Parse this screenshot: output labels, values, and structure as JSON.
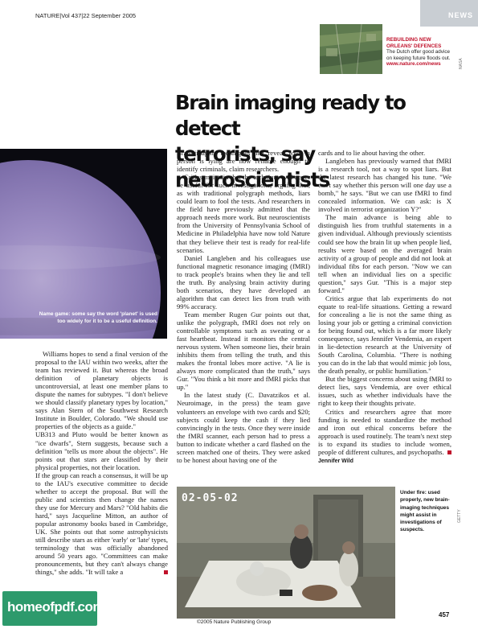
{
  "header": {
    "running_head": "NATURE|Vol 437|22 September 2005",
    "section": "NEWS"
  },
  "promo": {
    "title": "REBUILDING NEW ORLEANS' DEFENCES",
    "description": "The Dutch offer good advice on keeping future floods out.",
    "link": "www.nature.com/news",
    "credit": "NASA"
  },
  "headline": {
    "line1": "Brain imaging ready to detect",
    "line2": "terrorists, say neuroscientists"
  },
  "planet_caption": "Name game: some say the word 'planet' is used too widely for it to be a useful definition.",
  "column1": [
    "Williams hopes to send a final version of the proposal to the IAU within two weeks, after the team has reviewed it. But whereas the broad definition of planetary objects is uncontroversial, at least one member plans to dispute the names for subtypes. \"I don't believe we should classify planetary types by location,\" says Alan Stern of the Southwest Research Institute in Boulder, Colorado. \"We should use properties of the objects as a guide.\"",
    "UB313 and Pluto would be better known as \"ice dwarfs\", Stern suggests, because such a definition \"tells us more about the objects\". He points out that stars are classified by their physical properties, not their location.",
    "If the group can reach a consensus, it will be up to the IAU's executive committee to decide whether to accept the proposal. But will the public and scientists then change the names they use for Mercury and Mars? \"Old habits die hard,\" says Jacqueline Mitton, an author of popular astronomy books based in Cambridge, UK. She points out that some astrophysicists still describe stars as either 'early' or 'late' types, terminology that was officially abandoned around 50 years ago. \"Committees can make pronouncements, but they can't always change things,\" she adds. \"It will take a"
  ],
  "column2": [
    "Brain-imaging techniques that reveal when a person is lying are now reliable enough to identify criminals, claim researchers.",
    "Critics maintain that the technique will never be useful for such investigations, arguing that, as with traditional polygraph methods, liars could learn to fool the tests. And researchers in the field have previously admitted that the approach needs more work. But neuroscientists from the University of Pennsylvania School of Medicine in Philadelphia have now told Nature that they believe their test is ready for real-life scenarios.",
    "Daniel Langleben and his colleagues use functional magnetic resonance imaging (fMRI) to track people's brains when they lie and tell the truth. By analysing brain activity during both scenarios, they have developed an algorithm that can detect lies from truth with 99% accuracy.",
    "Team member Rugen Gur points out that, unlike the polygraph, fMRI does not rely on controllable symptoms such as sweating or a fast heartbeat. Instead it monitors the central nervous system. When someone lies, their brain inhibits them from telling the truth, and this makes the frontal lobes more active. \"A lie is always more complicated than the truth,\" says Gur. \"You think a bit more and fMRI picks that up.\"",
    "In the latest study (C. Davatzikos et al. Neuroimage, in the press) the team gave volunteers an envelope with two cards and $20; subjects could keep the cash if they lied convincingly in the tests. Once they were inside the fMRI scanner, each person had to press a button to indicate whether a card flashed on the screen matched one of theirs. They were asked to be honest about having one of the"
  ],
  "column3": [
    "cards and to lie about having the other.",
    "Langleben has previously warned that fMRI is a research tool, not a way to spot liars. But the latest research has changed his tune. \"We can't say whether this person will one day use a bomb,\" he says. \"But we can use fMRI to find concealed information. We can ask: is X involved in terrorist organization Y?\"",
    "The main advance is being able to distinguish lies from truthful statements in a given individual. Although previously scientists could see how the brain lit up when people lied, results were based on the averaged brain activity of a group of people and did not look at individual fibs for each person. \"Now we can tell when an individual lies on a specific question,\" says Gur. \"This is a major step forward.\"",
    "Critics argue that lab experiments do not equate to real-life situations. Getting a reward for concealing a lie is not the same thing as losing your job or getting a criminal conviction for being found out, which is a far more likely consequence, says Jennifer Vendemia, an expert in lie-detection research at the University of South Carolina, Columbia. \"There is nothing you can do in the lab that would mimic job loss, the death penalty, or public humiliation.\"",
    "But the biggest concerns about using fMRI to detect lies, says Vendemia, are over ethical issues, such as whether individuals have the right to keep their thoughts private.",
    "Critics and researchers agree that more funding is needed to standardize the method and iron out ethical concerns before the approach is used routinely. The team's next step is to expand its studies to include women, people of different cultures, and psychopaths."
  ],
  "byline": "Jennifer Wild",
  "photo": {
    "timestamp": "02-05-02",
    "caption": "Under fire: used properly, new brain-imaging techniques might assist in investigations of suspects.",
    "credit": "GETTY"
  },
  "footer": {
    "copyright": "©2005 Nature Publishing Group",
    "page_number": "457"
  },
  "watermark": "homeofpdf.com",
  "colors": {
    "accent_red": "#c0122b",
    "news_bar": "#c9ced3",
    "watermark_green": "#2d9a6c"
  }
}
